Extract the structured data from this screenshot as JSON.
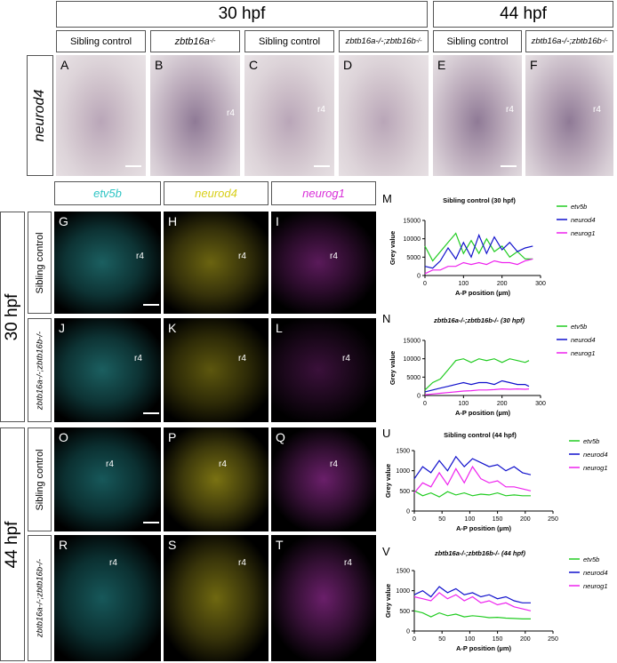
{
  "top": {
    "stage_a": "30 hpf",
    "stage_b": "44 hpf",
    "gene": "neurod4",
    "genotypes": [
      {
        "text": "Sibling control",
        "italic": false,
        "sup": ""
      },
      {
        "text": "zbtb16a",
        "italic": true,
        "sup": "-/-"
      },
      {
        "text": "Sibling control",
        "italic": false,
        "sup": ""
      },
      {
        "text": "zbtb16a-/-;zbtb16b",
        "italic": true,
        "sup": "-/-"
      },
      {
        "text": "Sibling control",
        "italic": false,
        "sup": ""
      },
      {
        "text": "zbtb16a-/-;zbtb16b",
        "italic": true,
        "sup": "-/-"
      }
    ],
    "panels": [
      "A",
      "B",
      "C",
      "D",
      "E",
      "F"
    ],
    "rhombomere": "r4"
  },
  "bottom": {
    "channels": [
      {
        "name": "etv5b",
        "color": "#2ec4c4"
      },
      {
        "name": "neurod4",
        "color": "#d8cf1a"
      },
      {
        "name": "neurog1",
        "color": "#d82fd8"
      }
    ],
    "stage_a": "30 hpf",
    "stage_b": "44 hpf",
    "row_labels": [
      "Sibling control",
      "zbtb16a-/-;zbtb16b-/-",
      "Sibling control",
      "zbtb16a-/-;zbtb16b-/-"
    ],
    "row_panels": [
      [
        "G",
        "H",
        "I"
      ],
      [
        "J",
        "K",
        "L"
      ],
      [
        "O",
        "P",
        "Q"
      ],
      [
        "R",
        "S",
        "T"
      ]
    ],
    "rhombomere": "r4"
  },
  "chart_data": [
    {
      "type": "line",
      "panel": "M",
      "title": "Sibling control (30 hpf)",
      "xlabel": "A-P position (µm)",
      "ylabel": "Grey value",
      "xlim": [
        0,
        300
      ],
      "ylim": [
        0,
        15000
      ],
      "xticks": [
        0,
        100,
        200,
        300
      ],
      "yticks": [
        0,
        5000,
        10000,
        15000
      ],
      "x": [
        0,
        20,
        40,
        60,
        80,
        100,
        120,
        140,
        160,
        180,
        200,
        220,
        240,
        260,
        280
      ],
      "series": [
        {
          "name": "etv5b",
          "color": "#22cc22",
          "values": [
            8000,
            4000,
            6500,
            9000,
            11500,
            6000,
            9500,
            6000,
            10000,
            6500,
            8000,
            5000,
            6500,
            4500,
            4500
          ]
        },
        {
          "name": "neurod4",
          "color": "#1111cc",
          "values": [
            2500,
            2000,
            4000,
            7500,
            4500,
            9000,
            5000,
            11000,
            6000,
            10500,
            7000,
            9000,
            6500,
            7500,
            8000
          ]
        },
        {
          "name": "neurog1",
          "color": "#ee22ee",
          "values": [
            500,
            1500,
            1500,
            2500,
            2500,
            3500,
            3000,
            3500,
            3000,
            4000,
            3500,
            3500,
            3000,
            4000,
            4500
          ]
        }
      ]
    },
    {
      "type": "line",
      "panel": "N",
      "title": "zbtb16a-/-;zbtb16b-/- (30 hpf)",
      "xlabel": "A-P position (µm)",
      "ylabel": "Grey value",
      "xlim": [
        0,
        300
      ],
      "ylim": [
        0,
        15000
      ],
      "xticks": [
        0,
        100,
        200,
        300
      ],
      "yticks": [
        0,
        5000,
        10000,
        15000
      ],
      "x": [
        0,
        20,
        40,
        60,
        80,
        100,
        120,
        140,
        160,
        180,
        200,
        220,
        240,
        260,
        270
      ],
      "series": [
        {
          "name": "etv5b",
          "color": "#22cc22",
          "values": [
            1500,
            3500,
            4500,
            7000,
            9500,
            10000,
            9000,
            10000,
            9500,
            10000,
            9000,
            10000,
            9500,
            9000,
            9500
          ]
        },
        {
          "name": "neurod4",
          "color": "#1111cc",
          "values": [
            1000,
            1500,
            2000,
            2500,
            3000,
            3500,
            3000,
            3500,
            3500,
            3000,
            4000,
            3500,
            3000,
            3000,
            2500
          ]
        },
        {
          "name": "neurog1",
          "color": "#ee22ee",
          "values": [
            200,
            400,
            600,
            800,
            1000,
            1200,
            1300,
            1500,
            1500,
            1600,
            1800,
            1700,
            1800,
            1700,
            1800
          ]
        }
      ]
    },
    {
      "type": "line",
      "panel": "U",
      "title": "Sibling control (44 hpf)",
      "xlabel": "A-P position (µm)",
      "ylabel": "Grey value",
      "xlim": [
        0,
        250
      ],
      "ylim": [
        0,
        1500
      ],
      "xticks": [
        0,
        50,
        100,
        150,
        200,
        250
      ],
      "yticks": [
        0,
        500,
        1000,
        1500
      ],
      "x": [
        0,
        15,
        30,
        45,
        60,
        75,
        90,
        105,
        120,
        135,
        150,
        165,
        180,
        195,
        210
      ],
      "series": [
        {
          "name": "etv5b",
          "color": "#22cc22",
          "values": [
            500,
            380,
            450,
            350,
            480,
            400,
            450,
            380,
            420,
            400,
            450,
            380,
            400,
            380,
            380
          ]
        },
        {
          "name": "neurod4",
          "color": "#1111cc",
          "values": [
            800,
            1100,
            950,
            1250,
            1000,
            1350,
            1100,
            1300,
            1200,
            1100,
            1150,
            1000,
            1100,
            950,
            900
          ]
        },
        {
          "name": "neurog1",
          "color": "#ee22ee",
          "values": [
            450,
            700,
            600,
            950,
            650,
            1050,
            700,
            1100,
            800,
            700,
            750,
            600,
            600,
            550,
            500
          ]
        }
      ]
    },
    {
      "type": "line",
      "panel": "V",
      "title": "zbtb16a-/-;zbtb16b-/- (44 hpf)",
      "xlabel": "A-P position (µm)",
      "ylabel": "Grey value",
      "xlim": [
        0,
        250
      ],
      "ylim": [
        0,
        1500
      ],
      "xticks": [
        0,
        50,
        100,
        150,
        200,
        250
      ],
      "yticks": [
        0,
        500,
        1000,
        1500
      ],
      "x": [
        0,
        15,
        30,
        45,
        60,
        75,
        90,
        105,
        120,
        135,
        150,
        165,
        180,
        195,
        210
      ],
      "series": [
        {
          "name": "etv5b",
          "color": "#22cc22",
          "values": [
            500,
            450,
            350,
            450,
            380,
            420,
            350,
            380,
            360,
            330,
            340,
            320,
            310,
            300,
            300
          ]
        },
        {
          "name": "neurod4",
          "color": "#1111cc",
          "values": [
            900,
            1000,
            850,
            1100,
            950,
            1050,
            900,
            950,
            850,
            900,
            800,
            850,
            750,
            700,
            700
          ]
        },
        {
          "name": "neurog1",
          "color": "#ee22ee",
          "values": [
            850,
            800,
            750,
            950,
            800,
            900,
            750,
            850,
            700,
            750,
            650,
            700,
            600,
            550,
            500
          ]
        }
      ]
    }
  ]
}
